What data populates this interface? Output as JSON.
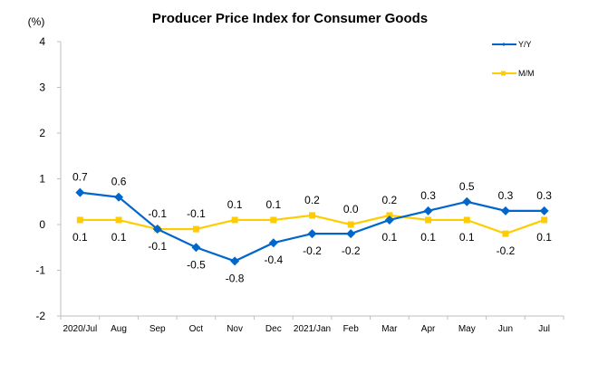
{
  "chart_data": {
    "type": "line",
    "title": "Producer Price Index for Consumer Goods",
    "ylabel": "(%)",
    "xlabel": "",
    "ylim": [
      -2,
      4
    ],
    "yticks": [
      4,
      3,
      2,
      1,
      0,
      -1,
      -2
    ],
    "grid": false,
    "legend_position": "top-right",
    "categories": [
      "2020/Jul",
      "Aug",
      "Sep",
      "Oct",
      "Nov",
      "Dec",
      "2021/Jan",
      "Feb",
      "Mar",
      "Apr",
      "May",
      "Jun",
      "Jul"
    ],
    "series": [
      {
        "name": "Y/Y",
        "color": "#0066CC",
        "marker": "diamond",
        "values": [
          0.7,
          0.6,
          -0.1,
          -0.5,
          -0.8,
          -0.4,
          -0.2,
          -0.2,
          0.1,
          0.3,
          0.5,
          0.3,
          0.3
        ],
        "labels": [
          "0.7",
          "0.6",
          "-0.1",
          "-0.5",
          "-0.8",
          "-0.4",
          "-0.2",
          "-0.2",
          "0.1",
          "0.3",
          "0.5",
          "0.3",
          "0.3"
        ],
        "label_pos": [
          "above",
          "above",
          "below",
          "below",
          "below",
          "below",
          "below",
          "below",
          "below",
          "above",
          "above",
          "above",
          "above"
        ]
      },
      {
        "name": "M/M",
        "color": "#FFCC00",
        "marker": "square",
        "values": [
          0.1,
          0.1,
          -0.1,
          -0.1,
          0.1,
          0.1,
          0.2,
          0.0,
          0.2,
          0.1,
          0.1,
          -0.2,
          0.1
        ],
        "labels": [
          "0.1",
          "0.1",
          "-0.1",
          "-0.1",
          "0.1",
          "0.1",
          "0.2",
          "0.0",
          "0.2",
          "0.1",
          "0.1",
          "-0.2",
          "0.1"
        ],
        "label_pos": [
          "below",
          "below",
          "above",
          "above",
          "above",
          "above",
          "above",
          "above",
          "above",
          "below",
          "below",
          "below",
          "below"
        ]
      }
    ]
  }
}
